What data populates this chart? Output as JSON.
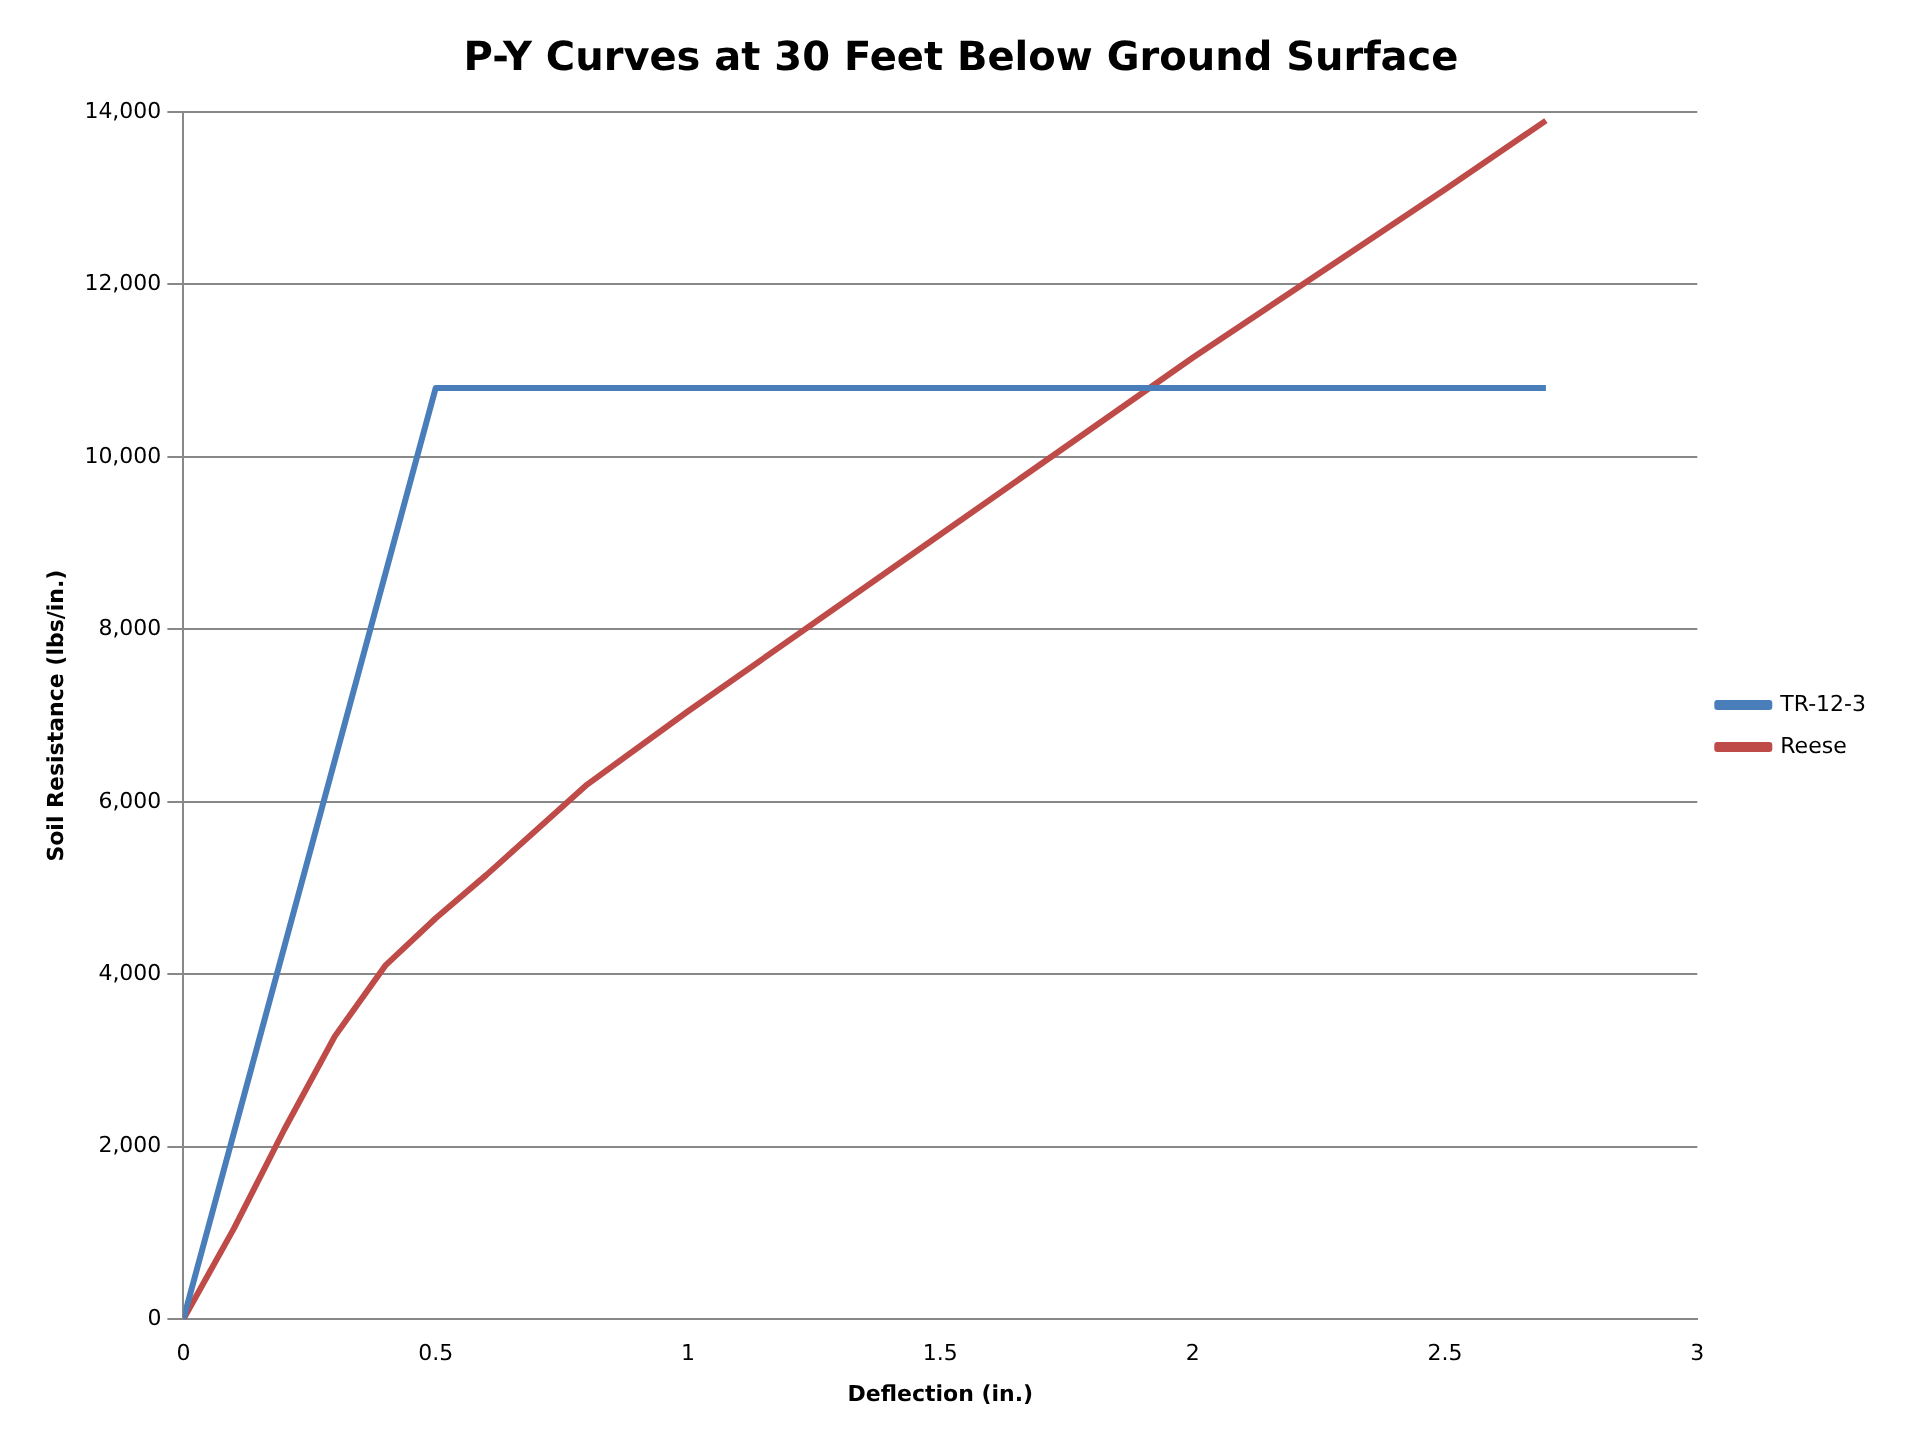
{
  "chart_data": {
    "type": "line",
    "title": "P-Y Curves at 30 Feet Below Ground Surface",
    "xlabel": "Deflection (in.)",
    "ylabel": "Soil Resistance (lbs/in.)",
    "xlim": [
      0,
      3
    ],
    "xticks": [
      0,
      0.5,
      1,
      1.5,
      2,
      2.5,
      3
    ],
    "ylim": [
      0,
      14000
    ],
    "yticks": [
      {
        "value": 0,
        "label": "0"
      },
      {
        "value": 2000,
        "label": "2,000"
      },
      {
        "value": 4000,
        "label": "4,000"
      },
      {
        "value": 6000,
        "label": "6,000"
      },
      {
        "value": 8000,
        "label": "8,000"
      },
      {
        "value": 10000,
        "label": "10,000"
      },
      {
        "value": 12000,
        "label": "12,000"
      },
      {
        "value": 14000,
        "label": "14,000"
      }
    ],
    "grid": "y",
    "legend": "right",
    "marker": "none",
    "line_style": "solid",
    "series": [
      {
        "name": "TR-12-3",
        "color": "#4a7ebb",
        "x": [
          0,
          0.5,
          2.7
        ],
        "values": [
          0,
          10800,
          10800
        ]
      },
      {
        "name": "Reese",
        "color": "#be4b48",
        "x": [
          0,
          0.1,
          0.2,
          0.3,
          0.4,
          0.5,
          0.6,
          0.8,
          1,
          1.5,
          2,
          2.5,
          2.7
        ],
        "values": [
          0,
          1050,
          2200,
          3280,
          4100,
          4650,
          5150,
          6200,
          7050,
          9100,
          11150,
          13100,
          13900
        ]
      }
    ]
  }
}
